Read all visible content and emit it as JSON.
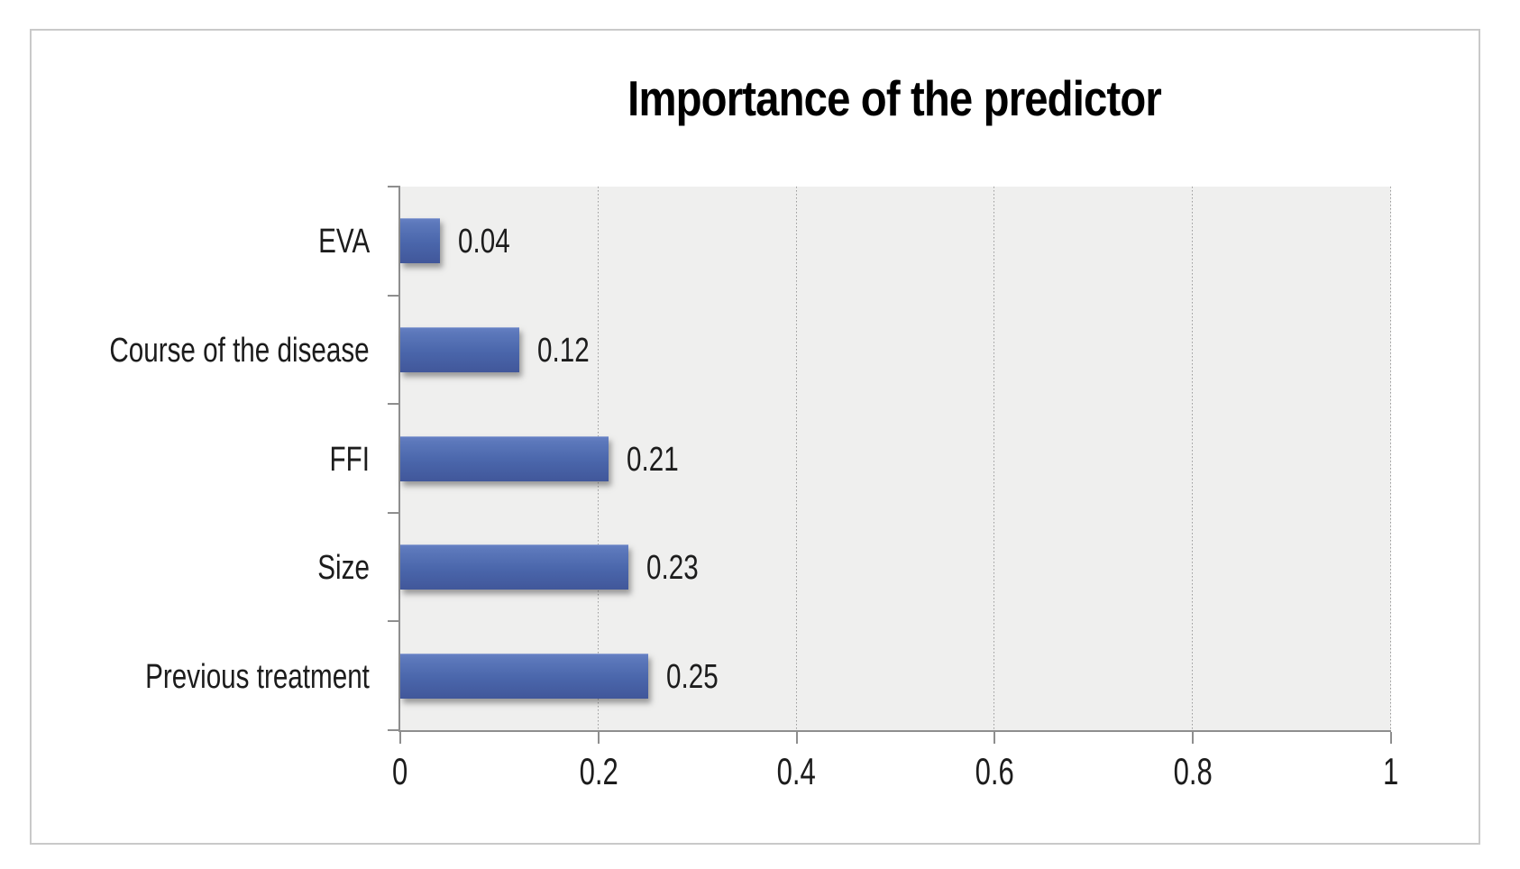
{
  "chart_data": {
    "type": "bar",
    "orientation": "horizontal",
    "title": "Importance of the predictor",
    "categories": [
      "EVA",
      "Course of the disease",
      "FFI",
      "Size",
      "Previous treatment"
    ],
    "values": [
      0.04,
      0.12,
      0.21,
      0.23,
      0.25
    ],
    "value_labels": [
      "0.04",
      "0.12",
      "0.21",
      "0.23",
      "0.25"
    ],
    "xlim": [
      0,
      1
    ],
    "xtick_values": [
      0,
      0.2,
      0.4,
      0.6,
      0.8,
      1
    ],
    "xtick_labels": [
      "0",
      "0.2",
      "0.4",
      "0.6",
      "0.8",
      "1"
    ],
    "grid": "vertical-dotted",
    "legend": false,
    "colors": {
      "bar": "#4a66ab",
      "bar_top": "#6781c4",
      "bar_bottom": "#41579a",
      "plot_bg": "#efefee",
      "axis": "#8e8e8e",
      "grid": "#9a9a9a",
      "text": "#1c1c1c",
      "title_text": "#000000",
      "frame_border": "#c9c9c9"
    }
  }
}
